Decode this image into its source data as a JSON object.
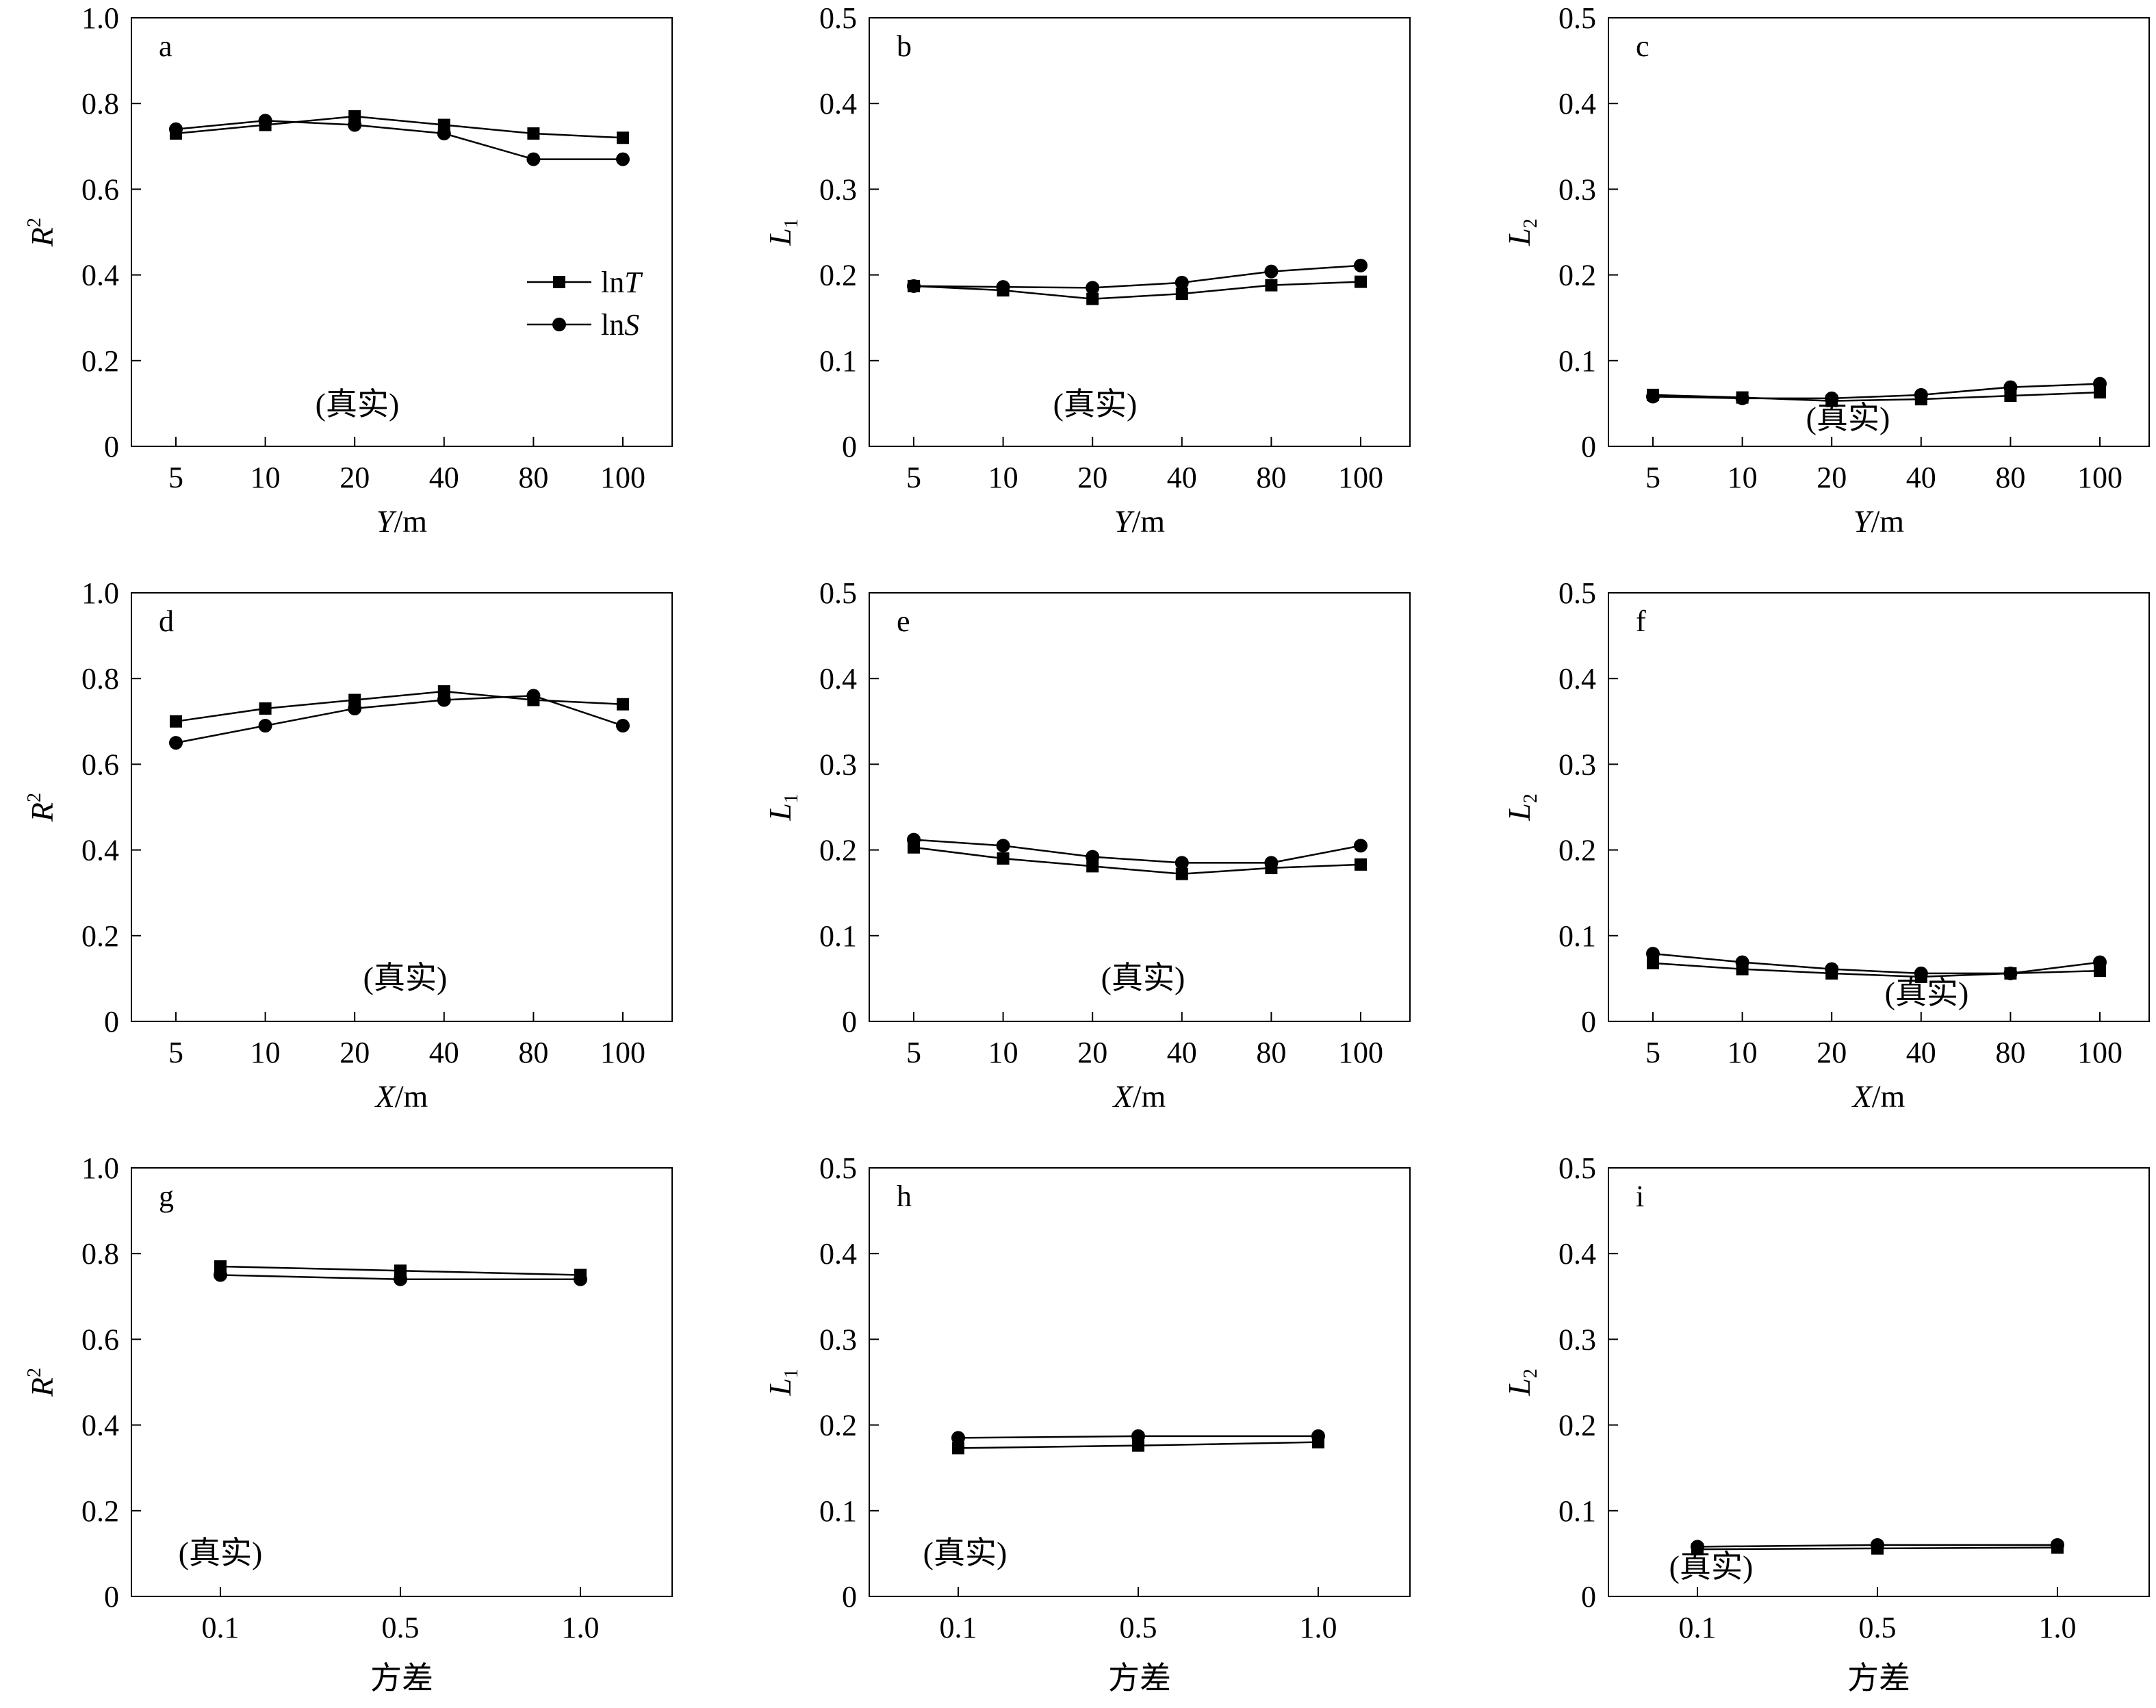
{
  "colors": {
    "line": "#000000",
    "background": "#ffffff"
  },
  "legend": {
    "entries": [
      {
        "prefix": "ln",
        "symbol": "T",
        "marker": "square"
      },
      {
        "prefix": "ln",
        "symbol": "S",
        "marker": "circle"
      }
    ]
  },
  "chart_data": [
    {
      "panel": "a",
      "type": "line",
      "note": "(真实)",
      "categories": [
        "5",
        "10",
        "20",
        "40",
        "80",
        "100"
      ],
      "xlabel": {
        "italic": "Y",
        "rest": "/m"
      },
      "ylabel": {
        "main": "R",
        "sub": "",
        "sup": "2"
      },
      "ylim": [
        0,
        1.0
      ],
      "yticks": [
        "0",
        "0.2",
        "0.4",
        "0.6",
        "0.8",
        "1.0"
      ],
      "series": [
        {
          "name": "lnT",
          "values": [
            0.73,
            0.75,
            0.77,
            0.75,
            0.73,
            0.72
          ]
        },
        {
          "name": "lnS",
          "values": [
            0.74,
            0.76,
            0.75,
            0.73,
            0.67,
            0.67
          ]
        }
      ]
    },
    {
      "panel": "b",
      "type": "line",
      "note": "(真实)",
      "categories": [
        "5",
        "10",
        "20",
        "40",
        "80",
        "100"
      ],
      "xlabel": {
        "italic": "Y",
        "rest": "/m"
      },
      "ylabel": {
        "main": "L",
        "sub": "1",
        "sup": ""
      },
      "ylim": [
        0,
        0.5
      ],
      "yticks": [
        "0",
        "0.1",
        "0.2",
        "0.3",
        "0.4",
        "0.5"
      ],
      "series": [
        {
          "name": "lnT",
          "values": [
            0.187,
            0.182,
            0.172,
            0.178,
            0.188,
            0.192
          ]
        },
        {
          "name": "lnS",
          "values": [
            0.187,
            0.186,
            0.185,
            0.191,
            0.204,
            0.211
          ]
        }
      ]
    },
    {
      "panel": "c",
      "type": "line",
      "note": "(真实)",
      "categories": [
        "5",
        "10",
        "20",
        "40",
        "80",
        "100"
      ],
      "xlabel": {
        "italic": "Y",
        "rest": "/m"
      },
      "ylabel": {
        "main": "L",
        "sub": "2",
        "sup": ""
      },
      "ylim": [
        0,
        0.5
      ],
      "yticks": [
        "0",
        "0.1",
        "0.2",
        "0.3",
        "0.4",
        "0.5"
      ],
      "series": [
        {
          "name": "lnT",
          "values": [
            0.06,
            0.057,
            0.053,
            0.055,
            0.059,
            0.063
          ]
        },
        {
          "name": "lnS",
          "values": [
            0.058,
            0.056,
            0.056,
            0.06,
            0.069,
            0.073
          ]
        }
      ]
    },
    {
      "panel": "d",
      "type": "line",
      "note": "(真实)",
      "categories": [
        "5",
        "10",
        "20",
        "40",
        "80",
        "100"
      ],
      "xlabel": {
        "italic": "X",
        "rest": "/m"
      },
      "ylabel": {
        "main": "R",
        "sub": "",
        "sup": "2"
      },
      "ylim": [
        0,
        1.0
      ],
      "yticks": [
        "0",
        "0.2",
        "0.4",
        "0.6",
        "0.8",
        "1.0"
      ],
      "series": [
        {
          "name": "lnT",
          "values": [
            0.7,
            0.73,
            0.75,
            0.77,
            0.75,
            0.74
          ]
        },
        {
          "name": "lnS",
          "values": [
            0.65,
            0.69,
            0.73,
            0.75,
            0.76,
            0.69
          ]
        }
      ]
    },
    {
      "panel": "e",
      "type": "line",
      "note": "(真实)",
      "categories": [
        "5",
        "10",
        "20",
        "40",
        "80",
        "100"
      ],
      "xlabel": {
        "italic": "X",
        "rest": "/m"
      },
      "ylabel": {
        "main": "L",
        "sub": "1",
        "sup": ""
      },
      "ylim": [
        0,
        0.5
      ],
      "yticks": [
        "0",
        "0.1",
        "0.2",
        "0.3",
        "0.4",
        "0.5"
      ],
      "series": [
        {
          "name": "lnT",
          "values": [
            0.203,
            0.19,
            0.181,
            0.172,
            0.179,
            0.183
          ]
        },
        {
          "name": "lnS",
          "values": [
            0.212,
            0.205,
            0.192,
            0.185,
            0.185,
            0.205
          ]
        }
      ]
    },
    {
      "panel": "f",
      "type": "line",
      "note": "(真实)",
      "categories": [
        "5",
        "10",
        "20",
        "40",
        "80",
        "100"
      ],
      "xlabel": {
        "italic": "X",
        "rest": "/m"
      },
      "ylabel": {
        "main": "L",
        "sub": "2",
        "sup": ""
      },
      "ylim": [
        0,
        0.5
      ],
      "yticks": [
        "0",
        "0.1",
        "0.2",
        "0.3",
        "0.4",
        "0.5"
      ],
      "series": [
        {
          "name": "lnT",
          "values": [
            0.068,
            0.061,
            0.056,
            0.052,
            0.056,
            0.059
          ]
        },
        {
          "name": "lnS",
          "values": [
            0.079,
            0.069,
            0.061,
            0.056,
            0.056,
            0.069
          ]
        }
      ]
    },
    {
      "panel": "g",
      "type": "line",
      "note": "(真实)",
      "categories": [
        "0.1",
        "0.5",
        "1.0"
      ],
      "xlabel": {
        "italic": "",
        "rest": "方差"
      },
      "ylabel": {
        "main": "R",
        "sub": "",
        "sup": "2"
      },
      "ylim": [
        0,
        1.0
      ],
      "yticks": [
        "0",
        "0.2",
        "0.4",
        "0.6",
        "0.8",
        "1.0"
      ],
      "series": [
        {
          "name": "lnT",
          "values": [
            0.77,
            0.76,
            0.75
          ]
        },
        {
          "name": "lnS",
          "values": [
            0.75,
            0.74,
            0.74
          ]
        }
      ]
    },
    {
      "panel": "h",
      "type": "line",
      "note": "(真实)",
      "categories": [
        "0.1",
        "0.5",
        "1.0"
      ],
      "xlabel": {
        "italic": "",
        "rest": "方差"
      },
      "ylabel": {
        "main": "L",
        "sub": "1",
        "sup": ""
      },
      "ylim": [
        0,
        0.5
      ],
      "yticks": [
        "0",
        "0.1",
        "0.2",
        "0.3",
        "0.4",
        "0.5"
      ],
      "series": [
        {
          "name": "lnT",
          "values": [
            0.173,
            0.176,
            0.18
          ]
        },
        {
          "name": "lnS",
          "values": [
            0.185,
            0.187,
            0.187
          ]
        }
      ]
    },
    {
      "panel": "i",
      "type": "line",
      "note": "(真实)",
      "categories": [
        "0.1",
        "0.5",
        "1.0"
      ],
      "xlabel": {
        "italic": "",
        "rest": "方差"
      },
      "ylabel": {
        "main": "L",
        "sub": "2",
        "sup": ""
      },
      "ylim": [
        0,
        0.5
      ],
      "yticks": [
        "0",
        "0.1",
        "0.2",
        "0.3",
        "0.4",
        "0.5"
      ],
      "series": [
        {
          "name": "lnT",
          "values": [
            0.055,
            0.056,
            0.057
          ]
        },
        {
          "name": "lnS",
          "values": [
            0.058,
            0.06,
            0.06
          ]
        }
      ]
    }
  ]
}
